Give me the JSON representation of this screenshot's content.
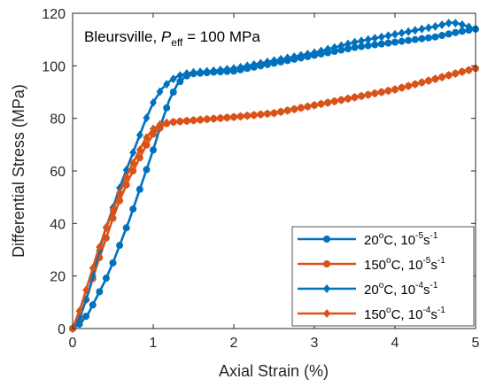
{
  "chart_data": {
    "type": "line",
    "annotation": {
      "prefix": "Bleursville, ",
      "var": "P",
      "sub": "eff",
      "suffix": " = 100 MPa"
    },
    "xlabel": "Axial Strain (%)",
    "ylabel": "Differential Stress (MPa)",
    "xlim": [
      0,
      5
    ],
    "ylim": [
      0,
      120
    ],
    "xticks": [
      0,
      1,
      2,
      3,
      4,
      5
    ],
    "yticks": [
      0,
      20,
      40,
      60,
      80,
      100,
      120
    ],
    "grid": false,
    "legend_position": "bottom-right",
    "colors": {
      "blue": "#0072BD",
      "orange": "#D95319"
    },
    "series": [
      {
        "temp": "20",
        "rate_exp": "-5",
        "color": "#0072BD",
        "marker": "circle",
        "x": [
          0,
          0.1,
          0.2,
          0.3,
          0.4,
          0.5,
          0.6,
          0.7,
          0.8,
          0.9,
          1.0,
          1.1,
          1.2,
          1.3,
          1.4,
          1.5,
          1.7,
          2.0,
          2.5,
          3.0,
          3.5,
          4.0,
          4.5,
          4.8,
          5.0
        ],
        "y": [
          0,
          2,
          6,
          12,
          18,
          25,
          33,
          41,
          50,
          59,
          68,
          78,
          87,
          93,
          96,
          97,
          97.5,
          98,
          101,
          104,
          107,
          109,
          111,
          113,
          114
        ]
      },
      {
        "temp": "150",
        "rate_exp": "-5",
        "color": "#D95319",
        "marker": "circle",
        "x": [
          0,
          0.1,
          0.2,
          0.3,
          0.4,
          0.5,
          0.6,
          0.7,
          0.8,
          0.9,
          1.0,
          1.1,
          1.2,
          1.4,
          1.6,
          1.8,
          2.0,
          2.5,
          3.0,
          3.5,
          4.0,
          4.5,
          4.8,
          5.0
        ],
        "y": [
          0,
          5,
          14,
          24,
          33,
          42,
          50,
          57,
          63,
          69,
          74,
          77,
          78.5,
          79,
          79.5,
          80,
          80.5,
          82,
          85,
          88,
          91,
          95,
          97.5,
          99
        ]
      },
      {
        "temp": "20",
        "rate_exp": "-4",
        "color": "#0072BD",
        "marker": "diamond",
        "x": [
          0,
          0.1,
          0.2,
          0.3,
          0.4,
          0.5,
          0.6,
          0.7,
          0.8,
          0.9,
          1.0,
          1.1,
          1.2,
          1.3,
          1.4,
          1.5,
          1.7,
          2.0,
          2.5,
          3.0,
          3.5,
          4.0,
          4.5,
          4.7,
          4.8,
          4.9,
          5.0
        ],
        "y": [
          0,
          5,
          14,
          26,
          37,
          46,
          55,
          63,
          71,
          79,
          86,
          91,
          94,
          96,
          97,
          97.5,
          98,
          99,
          102,
          105,
          109,
          112,
          115,
          116.5,
          116,
          115,
          114
        ]
      },
      {
        "temp": "150",
        "rate_exp": "-4",
        "color": "#D95319",
        "marker": "diamond",
        "x": [
          0,
          0.1,
          0.2,
          0.3,
          0.4,
          0.5,
          0.6,
          0.7,
          0.8,
          0.9,
          1.0,
          1.1,
          1.2,
          1.4,
          1.6,
          1.8,
          2.0,
          2.5,
          3.0,
          3.5,
          4.0,
          4.5,
          4.8,
          5.0
        ],
        "y": [
          0,
          8,
          18,
          28,
          37,
          45,
          53,
          60,
          66,
          72,
          76,
          78,
          78.5,
          79,
          79.5,
          80,
          80.5,
          82,
          85,
          88,
          91,
          95,
          97.5,
          99
        ]
      }
    ]
  }
}
